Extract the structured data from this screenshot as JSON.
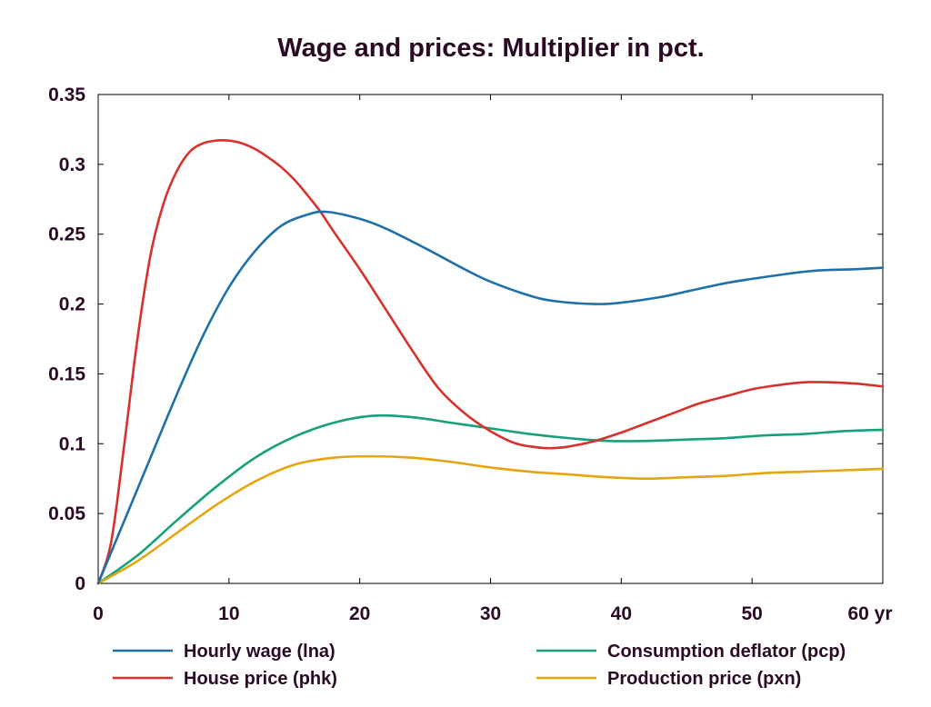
{
  "chart_data": {
    "type": "line",
    "title": "Wage and prices: Multiplier in pct.",
    "xlabel": "",
    "ylabel": "",
    "xlim": [
      0,
      60
    ],
    "ylim": [
      0,
      0.35
    ],
    "x_ticks": [
      0,
      10,
      20,
      30,
      40,
      50,
      60
    ],
    "x_tick_labels": [
      "0",
      "10",
      "20",
      "30",
      "40",
      "50",
      "60 yr"
    ],
    "y_ticks": [
      0,
      0.05,
      0.1,
      0.15,
      0.2,
      0.25,
      0.3,
      0.35
    ],
    "y_tick_labels": [
      "0",
      "0.05",
      "0.1",
      "0.15",
      "0.2",
      "0.25",
      "0.3",
      "0.35"
    ],
    "grid": false,
    "legend_position": "bottom",
    "series": [
      {
        "name": "Hourly wage (lna)",
        "color": "#1f6fa8",
        "x": [
          0,
          2,
          4,
          6,
          8,
          10,
          12,
          14,
          16,
          17.5,
          20,
          22,
          25,
          28,
          30,
          33,
          35,
          38,
          40,
          43,
          45,
          48,
          50,
          53,
          55,
          58,
          60
        ],
        "y": [
          0,
          0.045,
          0.09,
          0.135,
          0.177,
          0.212,
          0.238,
          0.256,
          0.264,
          0.266,
          0.261,
          0.254,
          0.24,
          0.225,
          0.216,
          0.206,
          0.202,
          0.2,
          0.201,
          0.205,
          0.209,
          0.215,
          0.218,
          0.222,
          0.224,
          0.225,
          0.226
        ]
      },
      {
        "name": "House price (phk)",
        "color": "#d8302c",
        "x": [
          0,
          1,
          2,
          3,
          4,
          5,
          6,
          7,
          8,
          9,
          10,
          11,
          12,
          13,
          14,
          15,
          16,
          17,
          18,
          20,
          22,
          24,
          26,
          28,
          30,
          32,
          34,
          35,
          36,
          38,
          40,
          42,
          44,
          46,
          48,
          50,
          52,
          54,
          56,
          58,
          60
        ],
        "y": [
          0,
          0.03,
          0.1,
          0.175,
          0.235,
          0.272,
          0.295,
          0.309,
          0.315,
          0.317,
          0.317,
          0.315,
          0.311,
          0.305,
          0.298,
          0.289,
          0.278,
          0.266,
          0.252,
          0.225,
          0.196,
          0.167,
          0.14,
          0.122,
          0.109,
          0.1,
          0.097,
          0.097,
          0.098,
          0.102,
          0.108,
          0.115,
          0.122,
          0.129,
          0.134,
          0.139,
          0.142,
          0.144,
          0.144,
          0.143,
          0.141
        ]
      },
      {
        "name": "Consumption deflator (pcp)",
        "color": "#17a07a",
        "x": [
          0,
          3,
          6,
          9,
          12,
          15,
          18,
          21,
          24,
          27,
          30,
          33,
          36,
          39,
          42,
          45,
          48,
          51,
          54,
          57,
          60
        ],
        "y": [
          0,
          0.02,
          0.045,
          0.069,
          0.09,
          0.105,
          0.115,
          0.12,
          0.119,
          0.115,
          0.111,
          0.107,
          0.104,
          0.102,
          0.102,
          0.103,
          0.104,
          0.106,
          0.107,
          0.109,
          0.11
        ]
      },
      {
        "name": "Production price (pxn)",
        "color": "#e5a50f",
        "x": [
          0,
          3,
          6,
          9,
          12,
          15,
          18,
          21,
          24,
          27,
          30,
          33,
          36,
          39,
          42,
          45,
          48,
          51,
          54,
          57,
          60
        ],
        "y": [
          0,
          0.016,
          0.036,
          0.056,
          0.073,
          0.085,
          0.09,
          0.091,
          0.09,
          0.087,
          0.083,
          0.08,
          0.078,
          0.076,
          0.075,
          0.076,
          0.077,
          0.079,
          0.08,
          0.081,
          0.082
        ]
      }
    ]
  }
}
